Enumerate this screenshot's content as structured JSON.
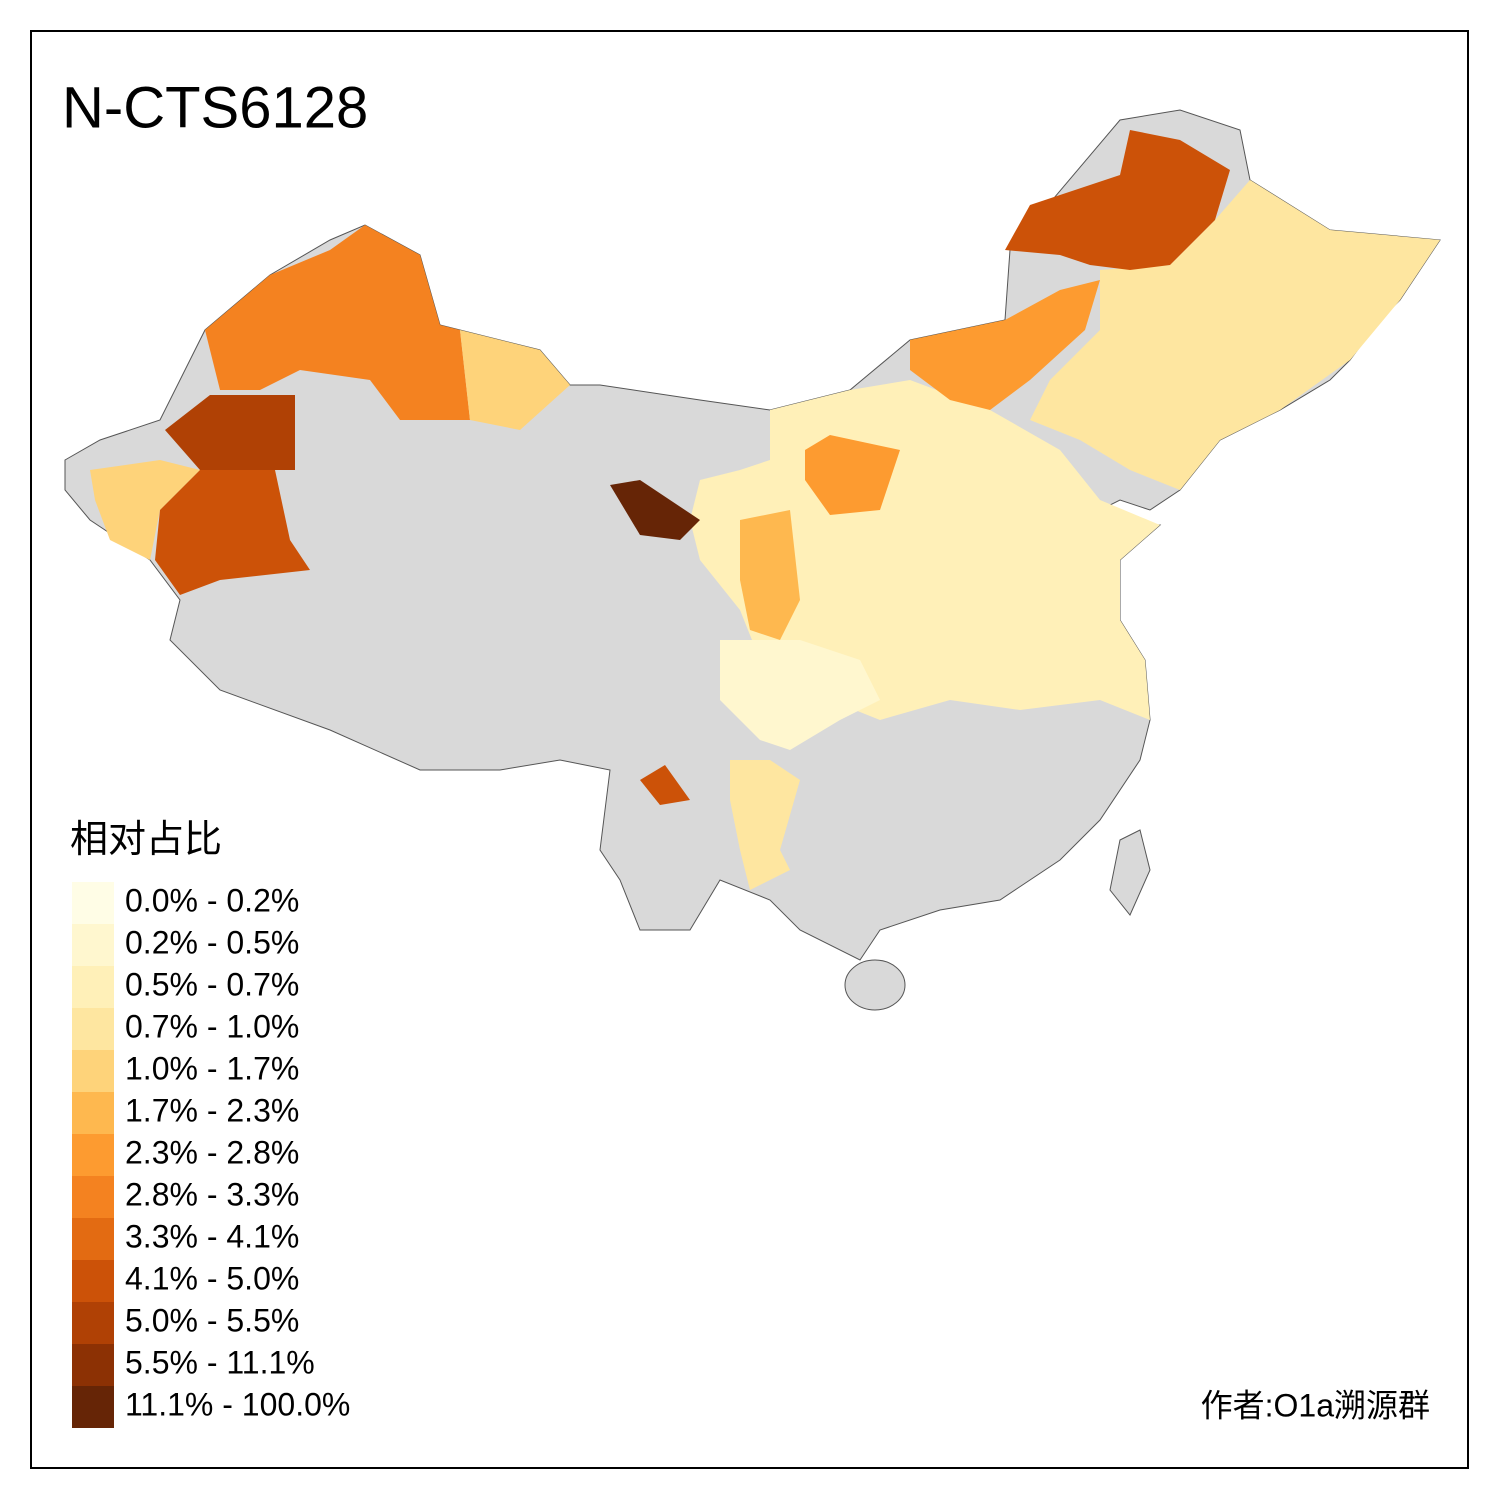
{
  "title": "N-CTS6128",
  "legend": {
    "title": "相对占比",
    "items": [
      {
        "label": "0.0% - 0.2%",
        "color": "#fffde6"
      },
      {
        "label": "0.2% - 0.5%",
        "color": "#fff7cf"
      },
      {
        "label": "0.5% - 0.7%",
        "color": "#fff0b8"
      },
      {
        "label": "0.7% - 1.0%",
        "color": "#fee6a0"
      },
      {
        "label": "1.0% - 1.7%",
        "color": "#fed37a"
      },
      {
        "label": "1.7% - 2.3%",
        "color": "#feb84f"
      },
      {
        "label": "2.3% - 2.8%",
        "color": "#fd9b30"
      },
      {
        "label": "2.8% - 3.3%",
        "color": "#f48220"
      },
      {
        "label": "3.3% - 4.1%",
        "color": "#e36b12"
      },
      {
        "label": "4.1% - 5.0%",
        "color": "#cc5208"
      },
      {
        "label": "5.0% - 5.5%",
        "color": "#b04105"
      },
      {
        "label": "5.5% - 11.1%",
        "color": "#8c3104"
      },
      {
        "label": "11.1% - 100.0%",
        "color": "#662506"
      }
    ]
  },
  "credit": "作者:O1a溯源群"
}
